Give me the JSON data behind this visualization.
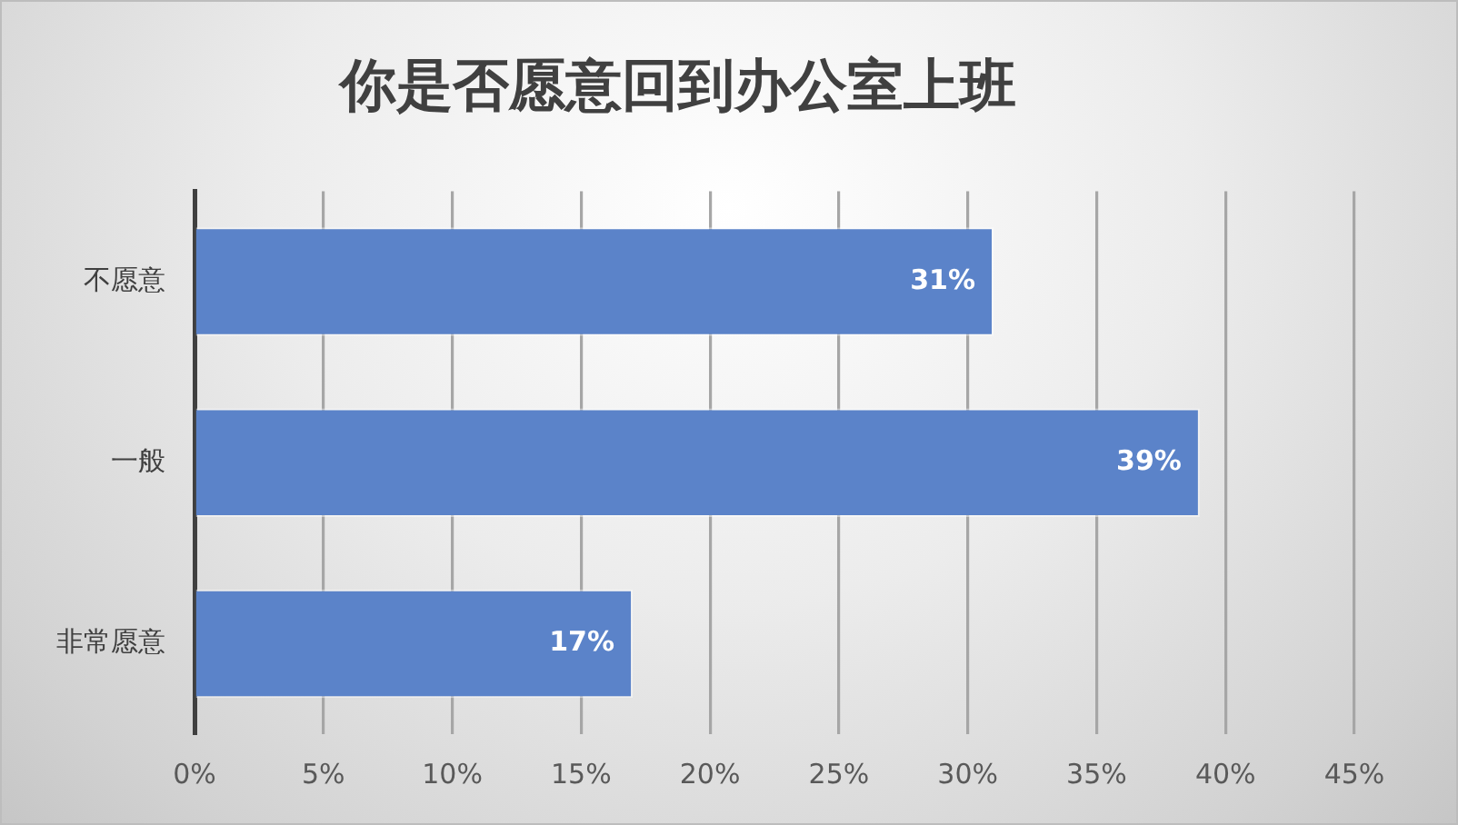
{
  "chart_data": {
    "type": "bar",
    "orientation": "horizontal",
    "title": "你是否愿意回到办公室上班",
    "categories": [
      "不愿意",
      "一般",
      "非常愿意"
    ],
    "values": [
      31,
      39,
      17
    ],
    "value_labels": [
      "31%",
      "39%",
      "17%"
    ],
    "color": "#5b83c9",
    "xlim": [
      0,
      45
    ],
    "xticks": [
      {
        "value": 0,
        "label": "0%"
      },
      {
        "value": 5,
        "label": "5%"
      },
      {
        "value": 10,
        "label": "10%"
      },
      {
        "value": 15,
        "label": "15%"
      },
      {
        "value": 20,
        "label": "20%"
      },
      {
        "value": 25,
        "label": "25%"
      },
      {
        "value": 30,
        "label": "30%"
      },
      {
        "value": 35,
        "label": "35%"
      },
      {
        "value": 40,
        "label": "40%"
      },
      {
        "value": 45,
        "label": "45%"
      }
    ],
    "grid": "x"
  }
}
